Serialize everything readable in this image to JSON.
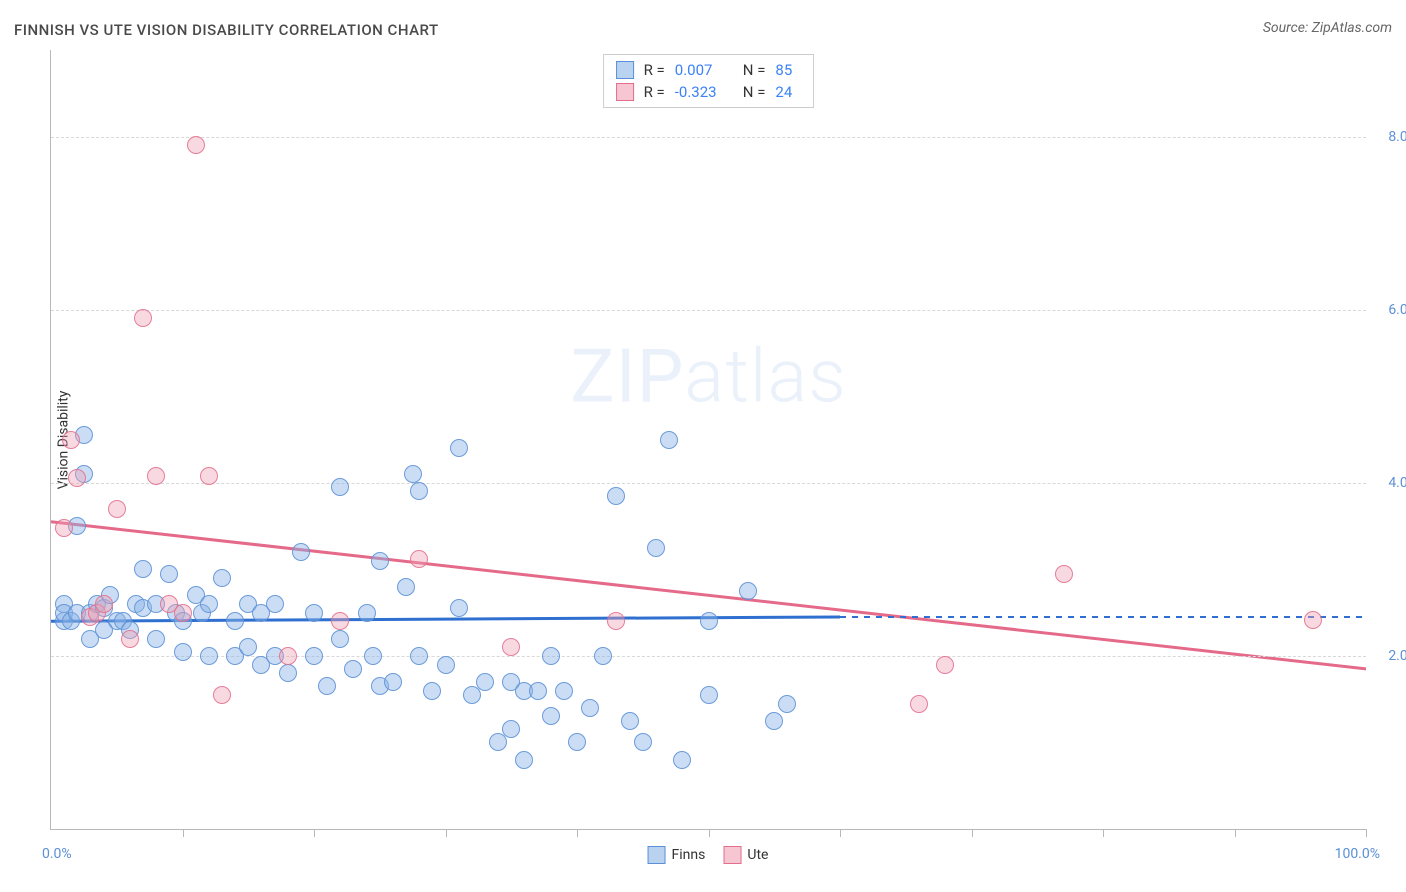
{
  "title": "FINNISH VS UTE VISION DISABILITY CORRELATION CHART",
  "source": "Source: ZipAtlas.com",
  "y_axis_label": "Vision Disability",
  "watermark_a": "ZIP",
  "watermark_b": "atlas",
  "chart": {
    "type": "scatter",
    "xlim": [
      0,
      100
    ],
    "ylim": [
      0,
      9
    ],
    "x_ticks_pct": [
      10,
      20,
      30,
      40,
      50,
      60,
      70,
      80,
      90,
      100
    ],
    "x_axis_labels": {
      "left": "0.0%",
      "right": "100.0%"
    },
    "y_gridlines": [
      {
        "v": 2.0,
        "label": "2.0%"
      },
      {
        "v": 4.0,
        "label": "4.0%"
      },
      {
        "v": 6.0,
        "label": "6.0%"
      },
      {
        "v": 8.0,
        "label": "8.0%"
      }
    ],
    "background_color": "#ffffff",
    "grid_color": "#d8d8d8",
    "axis_color": "#b8b8b8",
    "series": {
      "finns": {
        "label": "Finns",
        "fill": "rgba(137,180,230,0.45)",
        "stroke": "#5b8fd6",
        "marker_radius": 9,
        "R_label": "R =",
        "R": "0.007",
        "N_label": "N =",
        "N": "85",
        "trend": {
          "x0": 0,
          "y0": 2.4,
          "x1": 60,
          "y1": 2.45,
          "solid_to_x": 60,
          "dash_to_x": 100,
          "y_dash_end": 2.45,
          "color": "#2f6fd0",
          "width": 3
        },
        "points": [
          [
            1,
            2.4
          ],
          [
            1,
            2.6
          ],
          [
            1,
            2.5
          ],
          [
            1.5,
            2.4
          ],
          [
            2,
            2.5
          ],
          [
            2,
            3.5
          ],
          [
            2.5,
            4.55
          ],
          [
            2.5,
            4.1
          ],
          [
            3,
            2.2
          ],
          [
            3,
            2.5
          ],
          [
            3.5,
            2.6
          ],
          [
            4,
            2.3
          ],
          [
            4,
            2.55
          ],
          [
            4.5,
            2.7
          ],
          [
            5,
            2.4
          ],
          [
            5.5,
            2.4
          ],
          [
            6,
            2.3
          ],
          [
            6.5,
            2.6
          ],
          [
            7,
            2.55
          ],
          [
            7,
            3.0
          ],
          [
            8,
            2.2
          ],
          [
            8,
            2.6
          ],
          [
            9,
            2.95
          ],
          [
            9.5,
            2.5
          ],
          [
            10,
            2.4
          ],
          [
            10,
            2.05
          ],
          [
            11,
            2.7
          ],
          [
            11.5,
            2.5
          ],
          [
            12,
            2.0
          ],
          [
            12,
            2.6
          ],
          [
            13,
            2.9
          ],
          [
            14,
            2.0
          ],
          [
            14,
            2.4
          ],
          [
            15,
            2.1
          ],
          [
            15,
            2.6
          ],
          [
            16,
            2.5
          ],
          [
            16,
            1.9
          ],
          [
            17,
            2.0
          ],
          [
            17,
            2.6
          ],
          [
            18,
            1.8
          ],
          [
            19,
            3.2
          ],
          [
            20,
            2.0
          ],
          [
            20,
            2.5
          ],
          [
            21,
            1.65
          ],
          [
            22,
            3.95
          ],
          [
            22,
            2.2
          ],
          [
            23,
            1.85
          ],
          [
            24,
            2.5
          ],
          [
            24.5,
            2.0
          ],
          [
            25,
            1.65
          ],
          [
            25,
            3.1
          ],
          [
            26,
            1.7
          ],
          [
            27,
            2.8
          ],
          [
            27.5,
            4.1
          ],
          [
            28,
            3.9
          ],
          [
            28,
            2.0
          ],
          [
            29,
            1.6
          ],
          [
            30,
            1.9
          ],
          [
            31,
            4.4
          ],
          [
            31,
            2.55
          ],
          [
            32,
            1.55
          ],
          [
            33,
            1.7
          ],
          [
            34,
            1.0
          ],
          [
            35,
            1.7
          ],
          [
            35,
            1.15
          ],
          [
            36,
            0.8
          ],
          [
            36,
            1.6
          ],
          [
            37,
            1.6
          ],
          [
            38,
            2.0
          ],
          [
            38,
            1.3
          ],
          [
            39,
            1.6
          ],
          [
            40,
            1.0
          ],
          [
            41,
            1.4
          ],
          [
            42,
            2.0
          ],
          [
            43,
            3.85
          ],
          [
            44,
            1.25
          ],
          [
            45,
            1.0
          ],
          [
            46,
            3.25
          ],
          [
            47,
            4.5
          ],
          [
            48,
            0.8
          ],
          [
            50,
            2.4
          ],
          [
            50,
            1.55
          ],
          [
            53,
            2.75
          ],
          [
            55,
            1.25
          ],
          [
            56,
            1.45
          ]
        ]
      },
      "ute": {
        "label": "Ute",
        "fill": "rgba(240,160,180,0.4)",
        "stroke": "#e26e8c",
        "marker_radius": 9,
        "R_label": "R =",
        "R": "-0.323",
        "N_label": "N =",
        "N": "24",
        "trend": {
          "x0": 0,
          "y0": 3.55,
          "x1": 100,
          "y1": 1.85,
          "color": "#e56a8a",
          "width": 3
        },
        "points": [
          [
            1,
            3.48
          ],
          [
            1.5,
            4.5
          ],
          [
            2,
            4.05
          ],
          [
            3,
            2.45
          ],
          [
            3.5,
            2.5
          ],
          [
            4,
            2.6
          ],
          [
            5,
            3.7
          ],
          [
            6,
            2.2
          ],
          [
            7,
            5.9
          ],
          [
            8,
            4.08
          ],
          [
            9,
            2.6
          ],
          [
            10,
            2.5
          ],
          [
            11,
            7.9
          ],
          [
            12,
            4.08
          ],
          [
            13,
            1.55
          ],
          [
            18,
            2.0
          ],
          [
            22,
            2.4
          ],
          [
            28,
            3.12
          ],
          [
            43,
            2.4
          ],
          [
            66,
            1.45
          ],
          [
            68,
            1.9
          ],
          [
            77,
            2.95
          ],
          [
            96,
            2.42
          ],
          [
            35,
            2.1
          ]
        ]
      }
    }
  }
}
